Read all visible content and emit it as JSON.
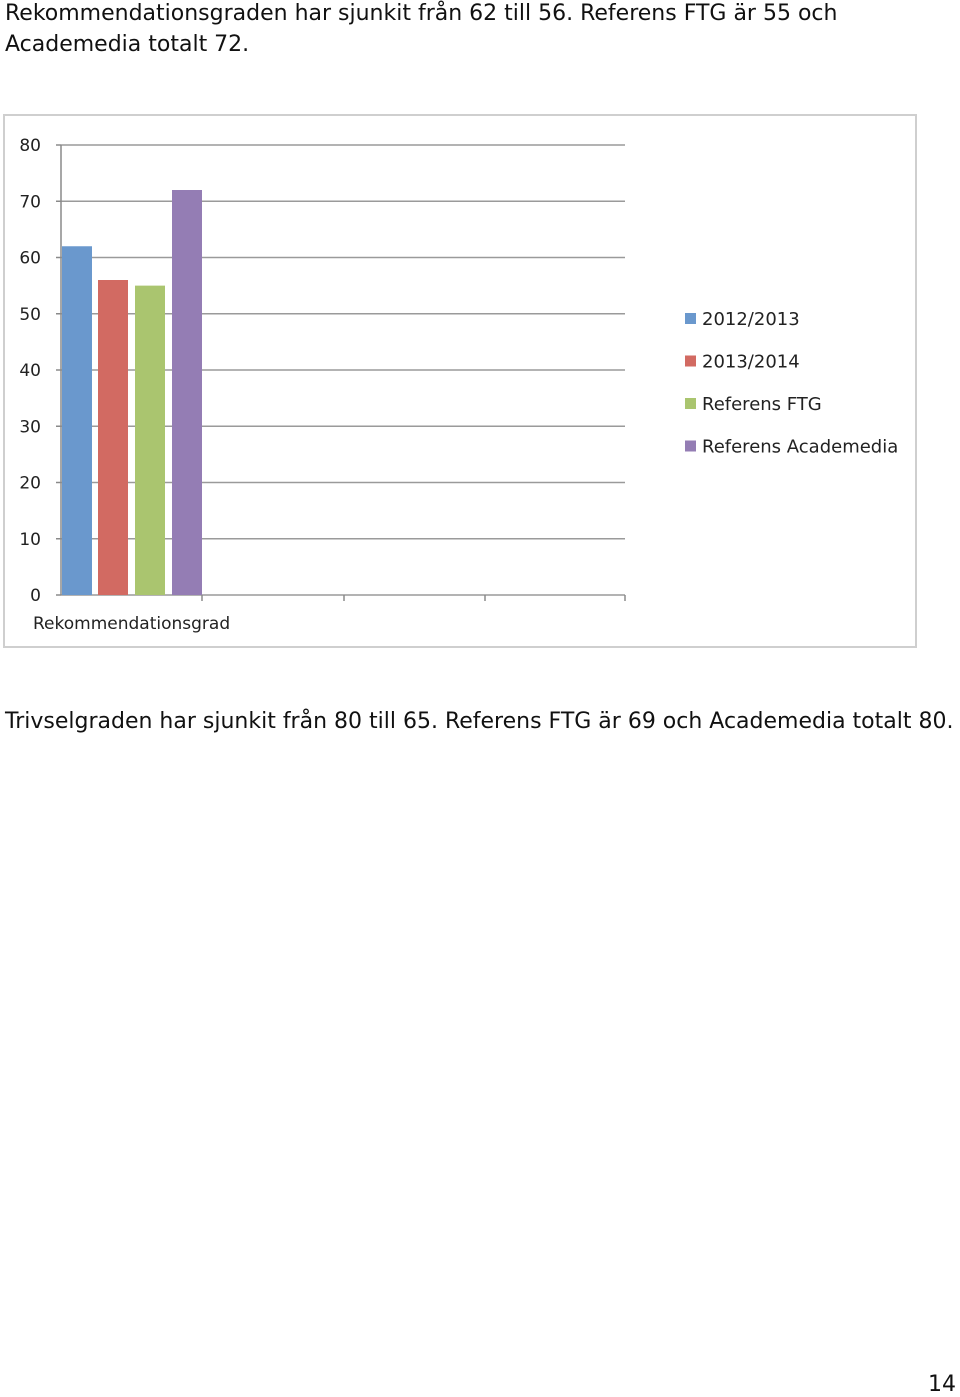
{
  "text": {
    "paragraph_top": "Rekommendationsgraden har sjunkit från 62 till 56. Referens FTG är 55 och Academedia totalt 72.",
    "paragraph_bottom": "Trivselgraden har sjunkit från 80 till 65. Referens FTG är 69 och Academedia totalt 80.",
    "page_number": "14"
  },
  "chart_data": {
    "type": "bar",
    "categories": [
      "Rekommendationsgrad"
    ],
    "series": [
      {
        "name": "2012/2013",
        "values": [
          62
        ],
        "color": "#6a98cd"
      },
      {
        "name": "2013/2014",
        "values": [
          56
        ],
        "color": "#d26a62"
      },
      {
        "name": "Referens FTG",
        "values": [
          55
        ],
        "color": "#aac56f"
      },
      {
        "name": "Referens Academedia",
        "values": [
          72
        ],
        "color": "#947db4"
      }
    ],
    "ylim": [
      0,
      80
    ],
    "yticks": [
      0,
      10,
      20,
      30,
      40,
      50,
      60,
      70,
      80
    ],
    "grid": true,
    "legend": "right",
    "title": "",
    "xlabel": "",
    "ylabel": ""
  }
}
